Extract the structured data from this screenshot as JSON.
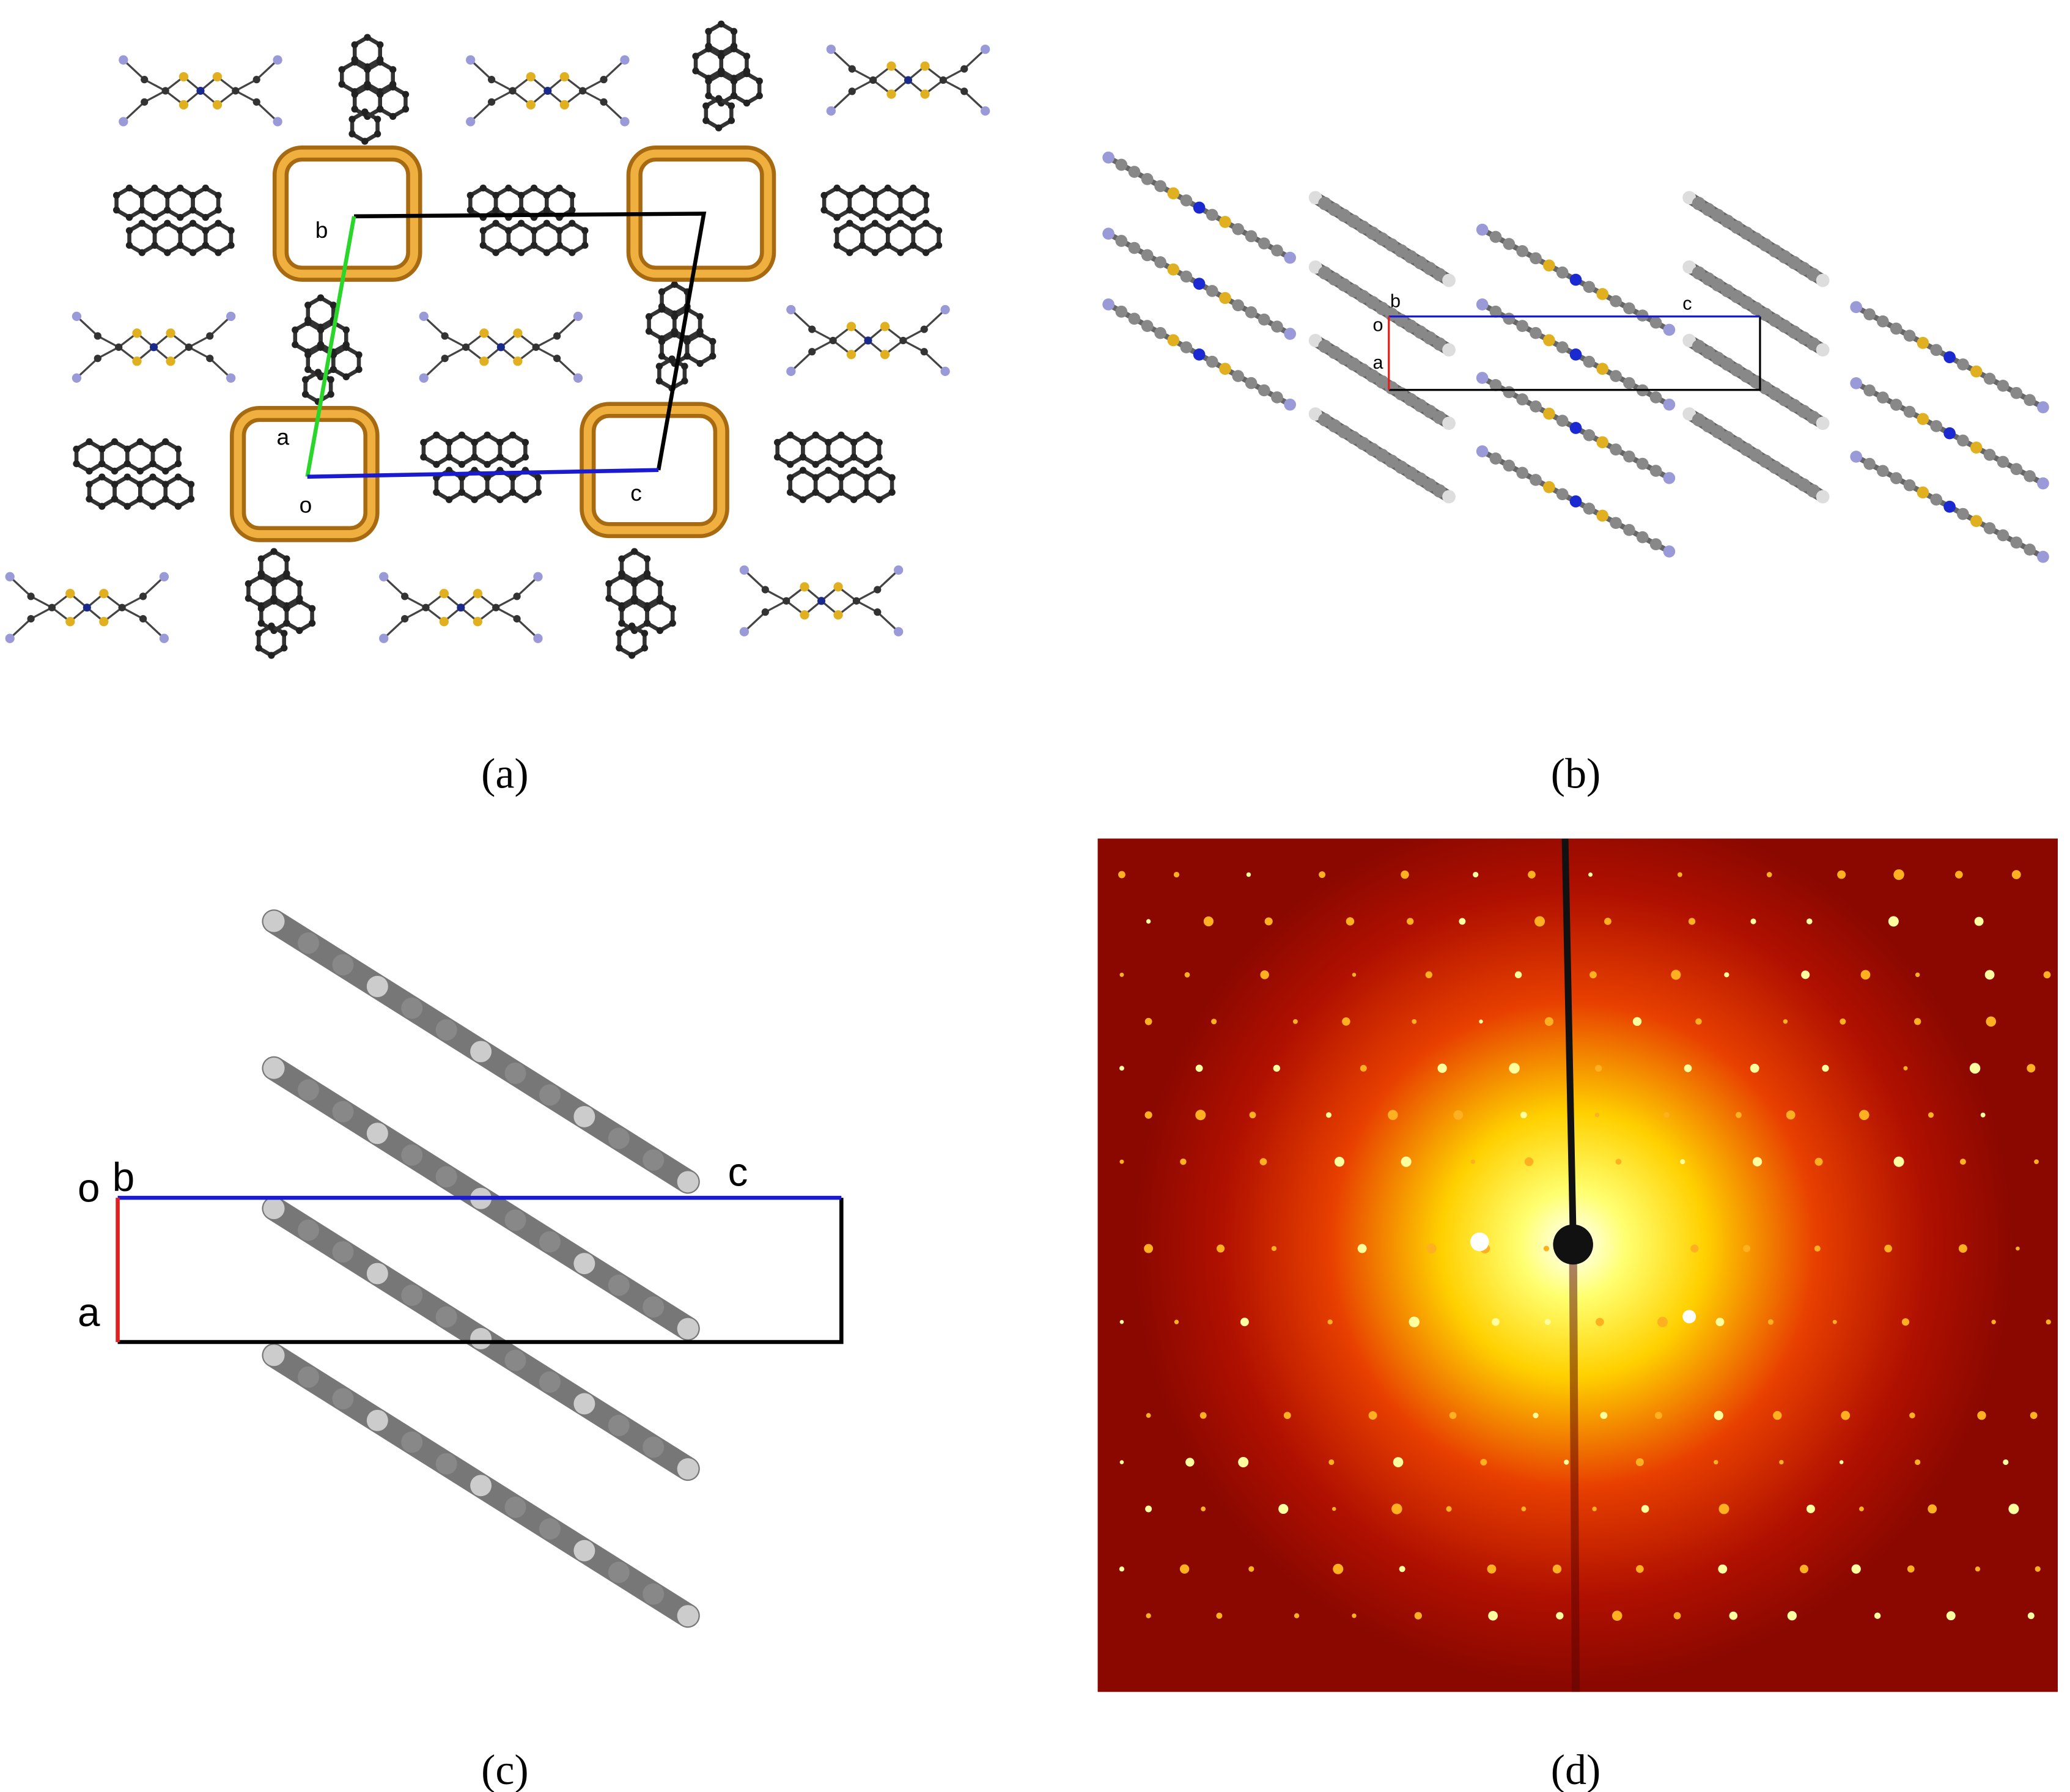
{
  "panels": [
    {
      "label": "(a)",
      "axes": {
        "b": "b",
        "a": "a",
        "o": "o",
        "c": "c"
      }
    },
    {
      "label": "(b)",
      "axes": {
        "b": "b",
        "o": "o",
        "a": "a",
        "c": "c"
      }
    },
    {
      "label": "(c)",
      "axes": {
        "o": "o",
        "b": "b",
        "c": "c",
        "a": "a"
      }
    },
    {
      "label": "(d)"
    }
  ]
}
